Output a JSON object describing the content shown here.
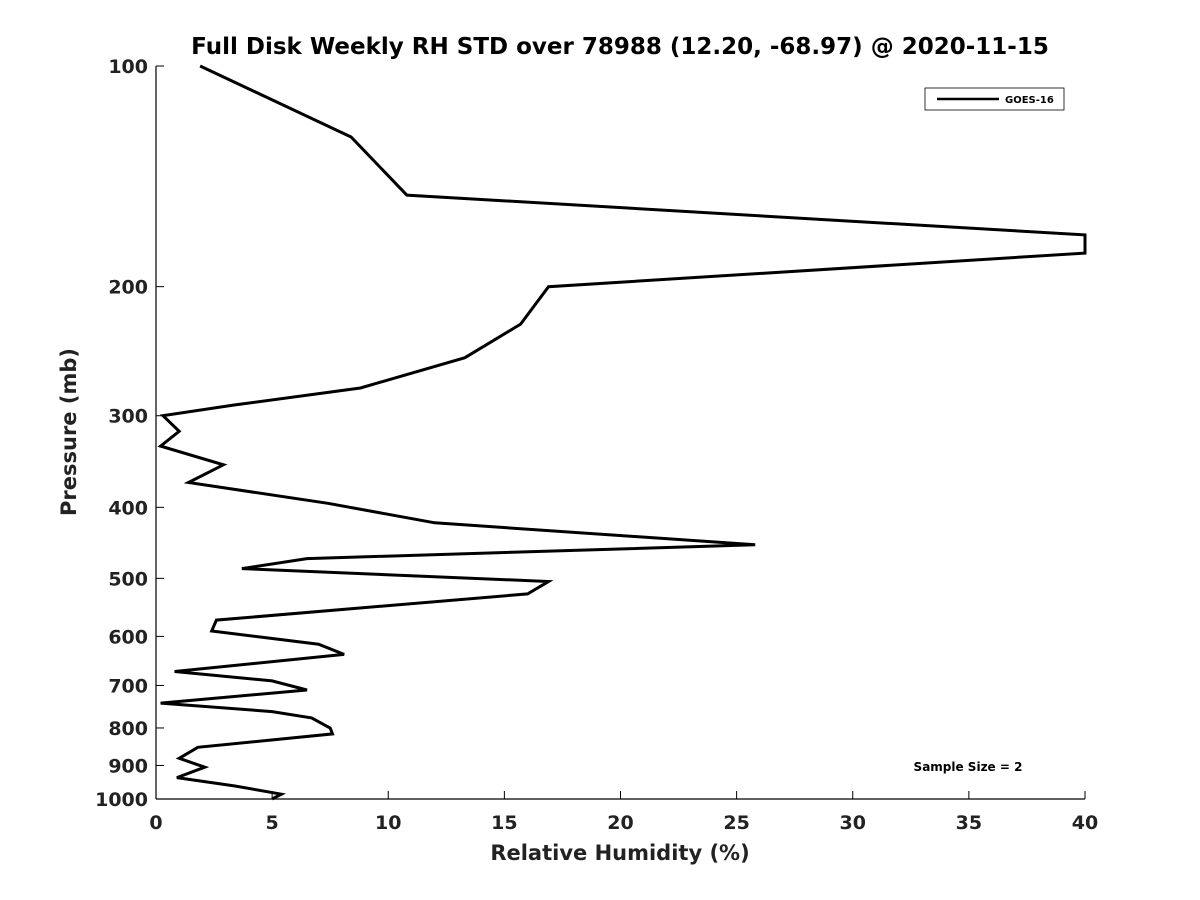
{
  "chart_data": {
    "type": "line",
    "title": "Full Disk Weekly RH STD over 78988 (12.20, -68.97) @ 2020-11-15",
    "xlabel": "Relative Humidity (%)",
    "ylabel": "Pressure (mb)",
    "xlim": [
      0,
      40
    ],
    "ylim": [
      100,
      1000
    ],
    "y_scale": "log",
    "y_reversed": true,
    "grid": false,
    "legend_position": "top-right",
    "x_ticks": [
      0,
      5,
      10,
      15,
      20,
      25,
      30,
      35,
      40
    ],
    "y_ticks": [
      100,
      200,
      300,
      400,
      500,
      600,
      700,
      800,
      900,
      1000
    ],
    "series": [
      {
        "name": "GOES-16",
        "color": "#000000",
        "x": [
          1.9,
          8.4,
          10.8,
          40,
          40,
          16.9,
          15.7,
          13.3,
          8.8,
          3.4,
          0.3,
          1.0,
          0.2,
          2.9,
          1.4,
          7.4,
          12.0,
          25.8,
          6.5,
          3.7,
          16.9,
          16.0,
          2.6,
          2.4,
          7.0,
          8.1,
          0.8,
          5.0,
          6.5,
          0.2,
          5.0,
          6.7,
          7.5,
          7.6,
          1.8,
          1.0,
          2.1,
          0.9,
          3.4,
          5.4,
          5.0
        ],
        "y": [
          100,
          125,
          150,
          170,
          180,
          200,
          225,
          250,
          275,
          290,
          300,
          315,
          330,
          350,
          370,
          395,
          420,
          450,
          470,
          485,
          505,
          525,
          570,
          590,
          615,
          635,
          670,
          690,
          710,
          740,
          760,
          775,
          800,
          815,
          850,
          880,
          905,
          935,
          960,
          985,
          1000
        ]
      }
    ],
    "annotations": [
      "Sample Size = 2"
    ]
  }
}
